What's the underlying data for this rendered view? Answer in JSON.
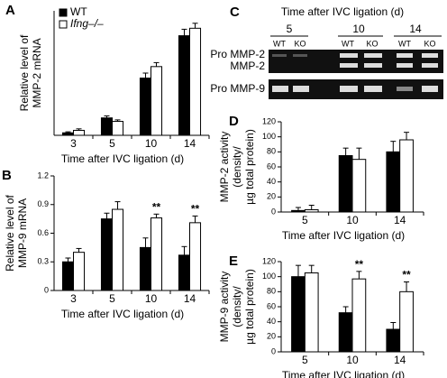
{
  "chart_data": [
    {
      "type": "bar",
      "panel": "A",
      "ylabel": [
        "Relative level of",
        "MMP-2 mRNA"
      ],
      "xlabel": "Time after IVC ligation (d)",
      "categories": [
        "3",
        "5",
        "10",
        "14"
      ],
      "ylim": [
        0,
        2.5
      ],
      "legend": "upper left",
      "series": [
        {
          "name": "WT",
          "color": "#000000",
          "values": [
            0.05,
            0.35,
            1.15,
            2.0
          ],
          "errors": [
            0.02,
            0.04,
            0.1,
            0.13
          ]
        },
        {
          "name": "Ifng–/–",
          "color": "#ffffff",
          "values": [
            0.1,
            0.28,
            1.38,
            2.15
          ],
          "errors": [
            0.03,
            0.03,
            0.08,
            0.1
          ]
        }
      ]
    },
    {
      "type": "bar",
      "panel": "B",
      "ylabel": [
        "Relative level of",
        "MMP-9 mRNA"
      ],
      "xlabel": "Time after IVC ligation (d)",
      "categories": [
        "3",
        "5",
        "10",
        "14"
      ],
      "ylim": [
        0,
        1.2
      ],
      "yticks": [
        0,
        0.3,
        0.6,
        0.9,
        1.2
      ],
      "series": [
        {
          "color": "#000000",
          "values": [
            0.3,
            0.75,
            0.45,
            0.37
          ],
          "errors": [
            0.04,
            0.06,
            0.1,
            0.09
          ]
        },
        {
          "color": "#ffffff",
          "values": [
            0.4,
            0.85,
            0.76,
            0.71
          ],
          "errors": [
            0.04,
            0.08,
            0.04,
            0.07
          ]
        }
      ],
      "annotations": [
        {
          "text": "**",
          "x": "10"
        },
        {
          "text": "**",
          "x": "14"
        }
      ]
    },
    {
      "type": "bar",
      "panel": "D",
      "ylabel": [
        "MMP-2 activity",
        "(density/",
        "µg total protein)"
      ],
      "xlabel": "Time after IVC ligation (d)",
      "categories": [
        "5",
        "10",
        "14"
      ],
      "ylim": [
        0,
        120
      ],
      "yticks": [
        0,
        20,
        40,
        60,
        80,
        100,
        120
      ],
      "series": [
        {
          "color": "#000000",
          "values": [
            2,
            75,
            80
          ],
          "errors": [
            4,
            10,
            14
          ]
        },
        {
          "color": "#ffffff",
          "values": [
            3,
            70,
            96
          ],
          "errors": [
            6,
            15,
            10
          ]
        }
      ]
    },
    {
      "type": "bar",
      "panel": "E",
      "ylabel": [
        "MMP-9 activity",
        "(density/",
        "µg total protein)"
      ],
      "xlabel": "Time after IVC ligation (d)",
      "categories": [
        "5",
        "10",
        "14"
      ],
      "ylim": [
        0,
        120
      ],
      "yticks": [
        0,
        20,
        40,
        60,
        80,
        100,
        120
      ],
      "series": [
        {
          "color": "#000000",
          "values": [
            100,
            52,
            30
          ],
          "errors": [
            15,
            8,
            9
          ]
        },
        {
          "color": "#ffffff",
          "values": [
            105,
            97,
            80
          ],
          "errors": [
            10,
            10,
            13
          ]
        }
      ],
      "annotations": [
        {
          "text": "**",
          "x": "10"
        },
        {
          "text": "**",
          "x": "14"
        }
      ]
    }
  ],
  "gel": {
    "panel": "C",
    "title": "Time after IVC ligation (d)",
    "times": [
      "5",
      "10",
      "14"
    ],
    "lanes": [
      "WT",
      "KO",
      "WT",
      "KO",
      "WT",
      "KO"
    ],
    "rows": [
      "Pro MMP-2",
      "MMP-2",
      "Pro MMP-9"
    ]
  }
}
